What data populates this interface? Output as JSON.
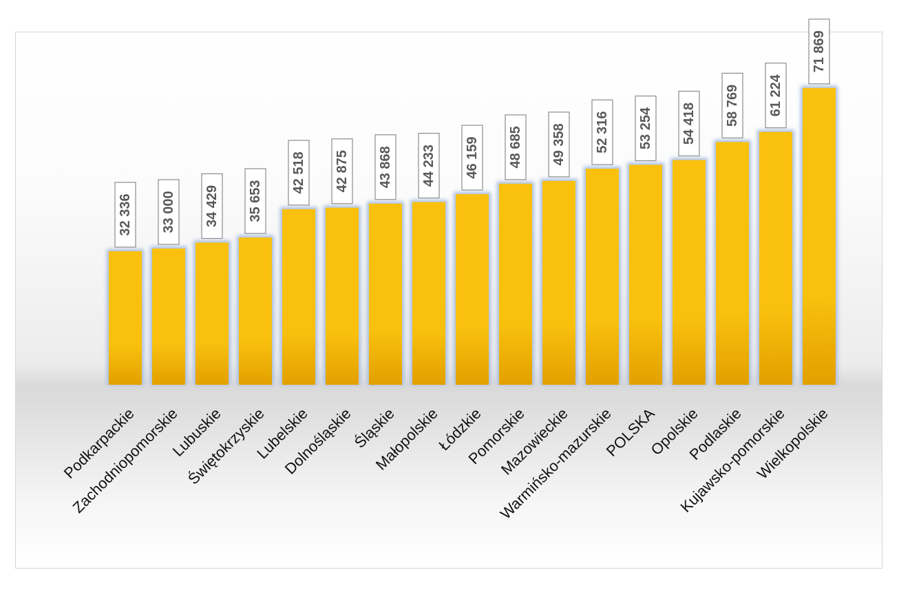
{
  "chart_data": {
    "type": "bar",
    "categories": [
      "Podkarpackie",
      "Zachodniopomorskie",
      "Lubuskie",
      "Świętokrzyskie",
      "Lubelskie",
      "Dolnośląskie",
      "Śląskie",
      "Małopolskie",
      "Łódzkie",
      "Pomorskie",
      "Mazowieckie",
      "Warmińsko-mazurskie",
      "POLSKA",
      "Opolskie",
      "Podlaskie",
      "Kujawsko-pomorskie",
      "Wielkopolskie"
    ],
    "values": [
      32336,
      33000,
      34429,
      35653,
      42518,
      42875,
      43868,
      44233,
      46159,
      48685,
      49358,
      52316,
      53254,
      54418,
      58769,
      61224,
      71869
    ],
    "value_labels": [
      "32 336",
      "33 000",
      "34 429",
      "35 653",
      "42 518",
      "42 875",
      "43 868",
      "44 233",
      "46 159",
      "48 685",
      "49 358",
      "52 316",
      "53 254",
      "54 418",
      "58 769",
      "61 224",
      "71 869"
    ],
    "ylim": [
      0,
      80000
    ],
    "grid": false,
    "legend": "none",
    "colors": {
      "bar_top": "#f9c10e",
      "bar_bottom": "#e2a000",
      "glow": "#a9bedf",
      "label_text": "#595959",
      "label_border": "#8c8c8c"
    }
  }
}
